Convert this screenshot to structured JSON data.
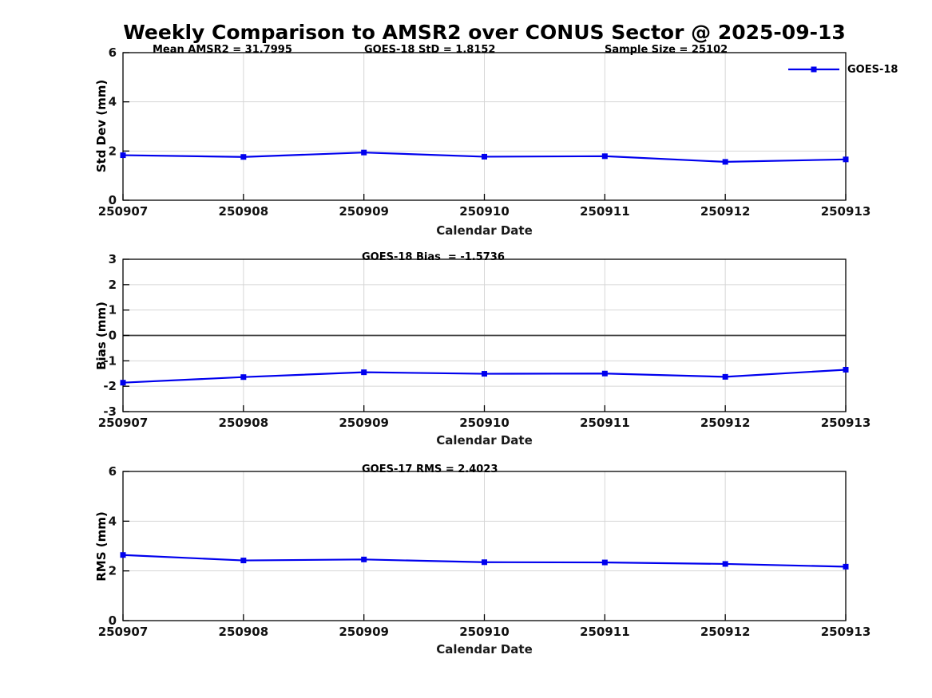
{
  "title": "Weekly Comparison to AMSR2 over CONUS Sector @ 2025-09-13",
  "legend": {
    "label": "GOES-18",
    "color": "#0000EE"
  },
  "chart_data": [
    {
      "type": "line",
      "name": "std-dev-panel",
      "annotations": [
        "Mean AMSR2 = 31.7995",
        "GOES-18 StD = 1.8152",
        "Sample Size = 25102"
      ],
      "ylabel": "Std Dev (mm)",
      "xlabel": "Calendar Date",
      "categories": [
        "250907",
        "250908",
        "250909",
        "250910",
        "250911",
        "250912",
        "250913"
      ],
      "series": [
        {
          "name": "GOES-18",
          "color": "#0000EE",
          "marker": "square",
          "values": [
            1.83,
            1.76,
            1.94,
            1.77,
            1.79,
            1.56,
            1.66
          ]
        }
      ],
      "ylim": [
        0,
        6
      ],
      "yticks": [
        0,
        2,
        4,
        6
      ],
      "grid": true,
      "zero_line": false,
      "legend_position": "top-right"
    },
    {
      "type": "line",
      "name": "bias-panel",
      "annotations": [
        "GOES-18 Bias  = -1.5736"
      ],
      "ylabel": "Bias (mm)",
      "xlabel": "Calendar Date",
      "categories": [
        "250907",
        "250908",
        "250909",
        "250910",
        "250911",
        "250912",
        "250913"
      ],
      "series": [
        {
          "name": "GOES-18",
          "color": "#0000EE",
          "marker": "square",
          "values": [
            -1.86,
            -1.64,
            -1.45,
            -1.51,
            -1.5,
            -1.63,
            -1.35
          ]
        }
      ],
      "ylim": [
        -3,
        3
      ],
      "yticks": [
        -3,
        -2,
        -1,
        0,
        1,
        2,
        3
      ],
      "grid": true,
      "zero_line": true,
      "legend_position": "none"
    },
    {
      "type": "line",
      "name": "rms-panel",
      "annotations": [
        "GOES-17 RMS = 2.4023"
      ],
      "ylabel": "RMS (mm)",
      "xlabel": "Calendar Date",
      "categories": [
        "250907",
        "250908",
        "250909",
        "250910",
        "250911",
        "250912",
        "250913"
      ],
      "series": [
        {
          "name": "GOES-18",
          "color": "#0000EE",
          "marker": "square",
          "values": [
            2.64,
            2.42,
            2.46,
            2.35,
            2.34,
            2.28,
            2.17
          ]
        }
      ],
      "ylim": [
        0,
        6
      ],
      "yticks": [
        0,
        2,
        4,
        6
      ],
      "grid": true,
      "zero_line": false,
      "legend_position": "none"
    }
  ],
  "colors": {
    "line": "#0000EE",
    "gridline": "#d6d6d6",
    "zero_line": "#3c3c3c",
    "axes": "#000000",
    "background": "#ffffff"
  }
}
